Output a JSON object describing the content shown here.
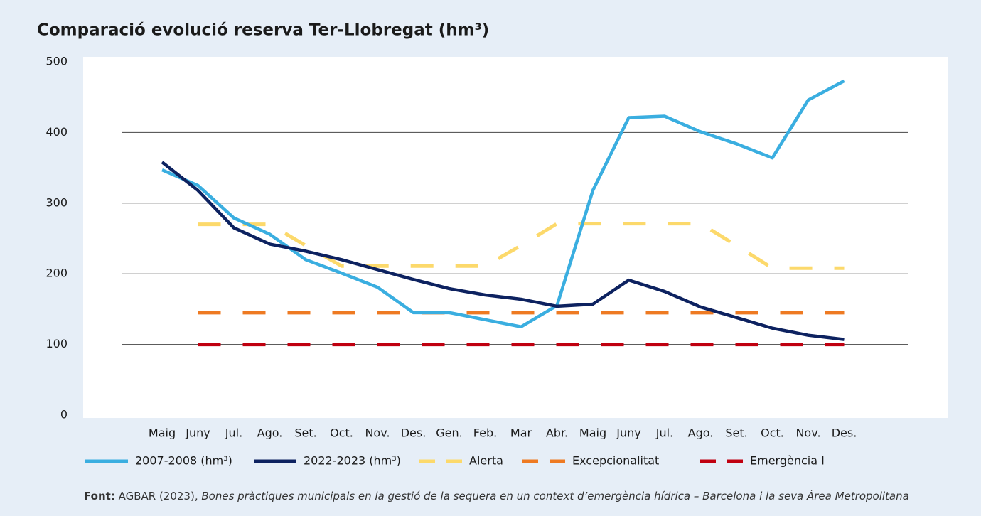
{
  "chart_data": {
    "type": "line",
    "title": "Comparació evolució reserva Ter-Llobregat (hm³)",
    "categories": [
      "Maig",
      "Juny",
      "Jul.",
      "Ago.",
      "Set.",
      "Oct.",
      "Nov.",
      "Des.",
      "Gen.",
      "Feb.",
      "Mar",
      "Abr.",
      "Maig",
      "Juny",
      "Jul.",
      "Ago.",
      "Set.",
      "Oct.",
      "Nov.",
      "Des."
    ],
    "series": [
      {
        "name": "2007-2008 (hm³)",
        "color": "#3aaee0",
        "dashed": false,
        "values": [
          347,
          325,
          279,
          256,
          220,
          201,
          181,
          145,
          145,
          135,
          125,
          155,
          318,
          421,
          423,
          401,
          384,
          364,
          446,
          473
        ]
      },
      {
        "name": "2022-2023 (hm³)",
        "color": "#0d2260",
        "dashed": false,
        "values": [
          358,
          318,
          265,
          242,
          232,
          220,
          206,
          192,
          179,
          170,
          164,
          154,
          157,
          191,
          175,
          153,
          138,
          123,
          113,
          107
        ]
      },
      {
        "name": "Alerta",
        "color": "#fcd96b",
        "dashed": true,
        "values": [
          null,
          270,
          270,
          270,
          240,
          211,
          211,
          211,
          211,
          211,
          240,
          271,
          271,
          271,
          271,
          271,
          240,
          208,
          208,
          208
        ]
      },
      {
        "name": "Excepcionalitat",
        "color": "#ee7a22",
        "dashed": true,
        "values": [
          null,
          145,
          145,
          145,
          145,
          145,
          145,
          145,
          145,
          145,
          145,
          145,
          145,
          145,
          145,
          145,
          145,
          145,
          145,
          145
        ]
      },
      {
        "name": "Emergència I",
        "color": "#c00010",
        "dashed": true,
        "values": [
          null,
          100,
          100,
          100,
          100,
          100,
          100,
          100,
          100,
          100,
          100,
          100,
          100,
          100,
          100,
          100,
          100,
          100,
          100,
          100
        ]
      }
    ],
    "ylim": [
      0,
      500
    ],
    "yticks": [
      0,
      100,
      200,
      300,
      400,
      500
    ],
    "grid": true
  },
  "source": {
    "label": "Font:",
    "text": "AGBAR (2023),",
    "title": "Bones pràctiques municipals en la gestió de la sequera en un context d’emergència hídrica – Barcelona i la seva Àrea Metropolitana"
  }
}
